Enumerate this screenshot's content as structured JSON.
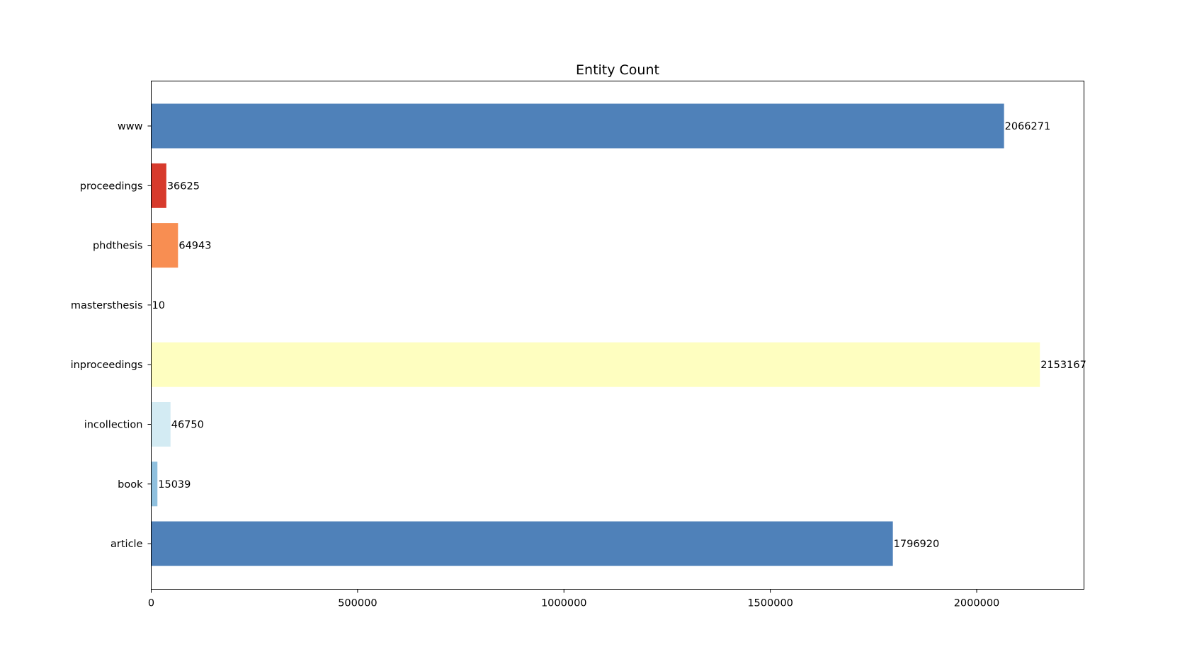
{
  "chart_data": {
    "type": "bar",
    "orientation": "horizontal",
    "title": "Entity Count",
    "xlabel": "",
    "ylabel": "",
    "xlim": [
      0,
      2260000
    ],
    "grid": false,
    "legend": "none",
    "categories": [
      "www",
      "proceedings",
      "phdthesis",
      "mastersthesis",
      "inproceedings",
      "incollection",
      "book",
      "article"
    ],
    "values": [
      2066271,
      36625,
      64943,
      10,
      2153167,
      46750,
      15039,
      1796920
    ],
    "value_labels": [
      "2066271",
      "36625",
      "64943",
      "10",
      "2153167",
      "46750",
      "15039",
      "1796920"
    ],
    "colors": [
      "#4f81b9",
      "#d73a2c",
      "#f88e52",
      "#fdc380",
      "#fefec0",
      "#d3ebf3",
      "#8fc0de",
      "#4f81b9"
    ],
    "x_ticks": [
      0,
      500000,
      1000000,
      1500000,
      2000000
    ],
    "x_tick_labels": [
      "0",
      "500000",
      "1000000",
      "1500000",
      "2000000"
    ]
  }
}
